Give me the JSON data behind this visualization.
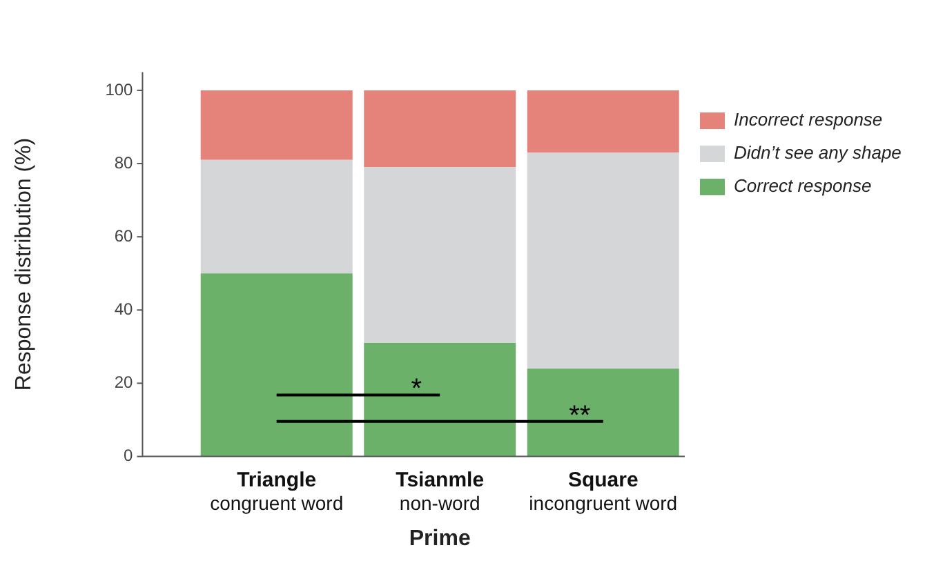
{
  "chart_data": {
    "type": "bar",
    "stacked": true,
    "xlabel": "Prime",
    "ylabel": "Response distribution (%)",
    "categories": [
      "Triangle\ncongruent word",
      "Tsianmle\nnon-word",
      "Square\nincongruent word"
    ],
    "series": [
      {
        "name": "Correct response",
        "color": "#6bb16a",
        "values": [
          50,
          31,
          24
        ]
      },
      {
        "name": "Didn’t see any shape",
        "color": "#d5d6d8",
        "values": [
          31,
          48,
          59
        ]
      },
      {
        "name": "Incorrect response",
        "color": "#e5837a",
        "values": [
          19,
          21,
          17
        ]
      }
    ],
    "ylim": [
      0,
      105
    ],
    "yticks": [
      0,
      20,
      40,
      60,
      80,
      100
    ],
    "grid": false,
    "legend": "right",
    "annotations": [
      "*",
      "**"
    ]
  }
}
